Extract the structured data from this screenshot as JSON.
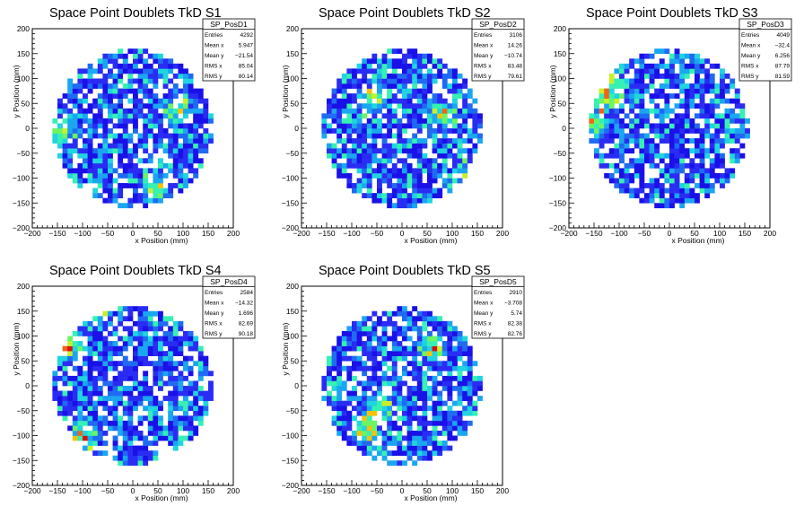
{
  "chart_data": [
    {
      "type": "heatmap",
      "title": "Space Point Doublets TkD S1",
      "xlabel": "x Position (mm)",
      "ylabel": "y Position (mm)",
      "xlim": [
        -200,
        200
      ],
      "ylim": [
        -200,
        200
      ],
      "xticks": [
        -200,
        -150,
        -100,
        -50,
        0,
        50,
        100,
        150,
        200
      ],
      "yticks": [
        -200,
        -150,
        -100,
        -50,
        0,
        50,
        100,
        150,
        200
      ],
      "stats": {
        "name": "SP_PosD1",
        "rows": [
          {
            "label": "Entries",
            "value": "4292"
          },
          {
            "label": "Mean x",
            "value": "5.947"
          },
          {
            "label": "Mean y",
            "value": "−21.54"
          },
          {
            "label": "RMS x",
            "value": "85.04"
          },
          {
            "label": "RMS y",
            "value": "80.14"
          }
        ]
      },
      "disk_radius_mm": 160,
      "bin_size_mm": 10,
      "hotspots": [
        [
          -150,
          -10
        ],
        [
          90,
          40
        ],
        [
          40,
          -120
        ]
      ]
    },
    {
      "type": "heatmap",
      "title": "Space Point Doublets TkD S2",
      "xlabel": "x Position (mm)",
      "ylabel": "y Position (mm)",
      "xlim": [
        -200,
        200
      ],
      "ylim": [
        -200,
        200
      ],
      "xticks": [
        -200,
        -150,
        -100,
        -50,
        0,
        50,
        100,
        150,
        200
      ],
      "yticks": [
        -200,
        -150,
        -100,
        -50,
        0,
        50,
        100,
        150,
        200
      ],
      "stats": {
        "name": "SP_PosD2",
        "rows": [
          {
            "label": "Entries",
            "value": "3106"
          },
          {
            "label": "Mean x",
            "value": "14.26"
          },
          {
            "label": "Mean y",
            "value": "−10.74"
          },
          {
            "label": "RMS x",
            "value": "83.48"
          },
          {
            "label": "RMS y",
            "value": "79.61"
          }
        ]
      },
      "disk_radius_mm": 160,
      "bin_size_mm": 10,
      "hotspots": [
        [
          80,
          30
        ],
        [
          140,
          -100
        ],
        [
          -60,
          60
        ]
      ]
    },
    {
      "type": "heatmap",
      "title": "Space Point Doublets TkD S3",
      "xlabel": "x Position (mm)",
      "ylabel": "y Position (mm)",
      "xlim": [
        -200,
        200
      ],
      "ylim": [
        -200,
        200
      ],
      "xticks": [
        -200,
        -150,
        -100,
        -50,
        0,
        50,
        100,
        150,
        200
      ],
      "yticks": [
        -200,
        -150,
        -100,
        -50,
        0,
        50,
        100,
        150,
        200
      ],
      "stats": {
        "name": "SP_PosD3",
        "rows": [
          {
            "label": "Entries",
            "value": "4049"
          },
          {
            "label": "Mean x",
            "value": "−32.4"
          },
          {
            "label": "Mean y",
            "value": "6.256"
          },
          {
            "label": "RMS x",
            "value": "87.79"
          },
          {
            "label": "RMS y",
            "value": "81.59"
          }
        ]
      },
      "disk_radius_mm": 160,
      "bin_size_mm": 10,
      "hotspots": [
        [
          -150,
          10
        ],
        [
          -130,
          60
        ],
        [
          -120,
          100
        ]
      ]
    },
    {
      "type": "heatmap",
      "title": "Space Point Doublets TkD S4",
      "xlabel": "x Position (mm)",
      "ylabel": "y Position (mm)",
      "xlim": [
        -200,
        200
      ],
      "ylim": [
        -200,
        200
      ],
      "xticks": [
        -200,
        -150,
        -100,
        -50,
        0,
        50,
        100,
        150,
        200
      ],
      "yticks": [
        -200,
        -150,
        -100,
        -50,
        0,
        50,
        100,
        150,
        200
      ],
      "stats": {
        "name": "SP_PosD4",
        "rows": [
          {
            "label": "Entries",
            "value": "2584"
          },
          {
            "label": "Mean x",
            "value": "−14.32"
          },
          {
            "label": "Mean y",
            "value": "1.696"
          },
          {
            "label": "RMS x",
            "value": "82.69"
          },
          {
            "label": "RMS y",
            "value": "90.18"
          }
        ]
      },
      "disk_radius_mm": 160,
      "bin_size_mm": 10,
      "hotspots": [
        [
          -80,
          150
        ],
        [
          -100,
          -110
        ],
        [
          -130,
          80
        ]
      ]
    },
    {
      "type": "heatmap",
      "title": "Space Point Doublets TkD S5",
      "xlabel": "x Position (mm)",
      "ylabel": "y Position (mm)",
      "xlim": [
        -200,
        200
      ],
      "ylim": [
        -200,
        200
      ],
      "xticks": [
        -200,
        -150,
        -100,
        -50,
        0,
        50,
        100,
        150,
        200
      ],
      "yticks": [
        -200,
        -150,
        -100,
        -50,
        0,
        50,
        100,
        150,
        200
      ],
      "stats": {
        "name": "SP_PosD5",
        "rows": [
          {
            "label": "Entries",
            "value": "2910"
          },
          {
            "label": "Mean x",
            "value": "−3.708"
          },
          {
            "label": "Mean y",
            "value": "5.74"
          },
          {
            "label": "RMS x",
            "value": "82.38"
          },
          {
            "label": "RMS y",
            "value": "82.76"
          }
        ]
      },
      "disk_radius_mm": 160,
      "bin_size_mm": 10,
      "hotspots": [
        [
          -50,
          -50
        ],
        [
          60,
          80
        ],
        [
          -70,
          -90
        ]
      ]
    }
  ]
}
